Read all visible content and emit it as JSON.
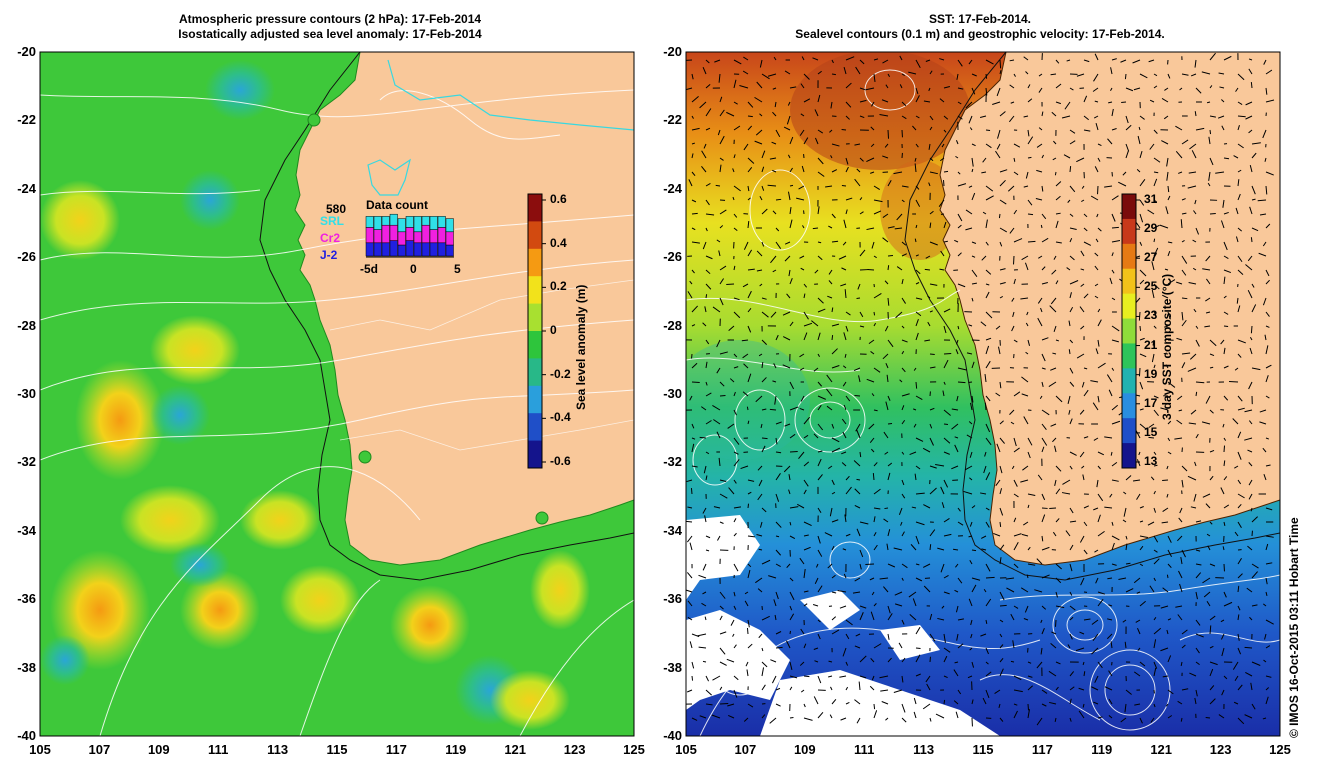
{
  "left_panel": {
    "title_line1": "Atmospheric pressure contours (2 hPa): 17-Feb-2014",
    "title_line2": "Isostatically adjusted sea level anomaly: 17-Feb-2014",
    "colorbar": {
      "label": "Sea level anomaly (m)",
      "ticks": [
        "0.6",
        "0.4",
        "0.2",
        "0",
        "-0.2",
        "-0.4",
        "-0.6"
      ],
      "colors": [
        "#8b0d0d",
        "#d24a10",
        "#f59a12",
        "#f2e21b",
        "#a8e030",
        "#2ec53c",
        "#28b888",
        "#2a9fdc",
        "#1f4fc8",
        "#14148c"
      ]
    },
    "inset": {
      "title": "Data count",
      "count": "580",
      "sat1": "SRL",
      "sat2": "Cr2",
      "sat3": "J-2",
      "x_ticks": [
        "-5d",
        "0",
        "5"
      ],
      "sat_colors": [
        "#30e0e8",
        "#f020e0",
        "#2020e0"
      ],
      "bars": [
        {
          "srl": 0.25,
          "cr2": 0.35,
          "j2": 0.3
        },
        {
          "srl": 0.3,
          "cr2": 0.3,
          "j2": 0.3
        },
        {
          "srl": 0.2,
          "cr2": 0.4,
          "j2": 0.3
        },
        {
          "srl": 0.25,
          "cr2": 0.35,
          "j2": 0.35
        },
        {
          "srl": 0.3,
          "cr2": 0.3,
          "j2": 0.25
        },
        {
          "srl": 0.25,
          "cr2": 0.3,
          "j2": 0.35
        },
        {
          "srl": 0.35,
          "cr2": 0.25,
          "j2": 0.3
        },
        {
          "srl": 0.2,
          "cr2": 0.4,
          "j2": 0.3
        },
        {
          "srl": 0.3,
          "cr2": 0.3,
          "j2": 0.3
        },
        {
          "srl": 0.25,
          "cr2": 0.35,
          "j2": 0.3
        },
        {
          "srl": 0.3,
          "cr2": 0.3,
          "j2": 0.25
        }
      ]
    }
  },
  "right_panel": {
    "title_line1": "SST: 17-Feb-2014.",
    "title_line2": "Sealevel contours (0.1 m) and geostrophic velocity: 17-Feb-2014.",
    "colorbar": {
      "label": "3-day SST composite (°C)",
      "ticks": [
        "31",
        "29",
        "27",
        "25",
        "23",
        "21",
        "19",
        "17",
        "15",
        "13"
      ],
      "colors": [
        "#7a0b0b",
        "#c8391a",
        "#e67a14",
        "#f2c21a",
        "#e8ee20",
        "#8fdc3a",
        "#2ec45a",
        "#22b2b0",
        "#2a8ee0",
        "#1f4fc8",
        "#14148c"
      ]
    }
  },
  "axes": {
    "lat_ticks": [
      "-20",
      "-22",
      "-24",
      "-26",
      "-28",
      "-30",
      "-32",
      "-34",
      "-36",
      "-38",
      "-40"
    ],
    "lon_ticks": [
      "105",
      "107",
      "109",
      "111",
      "113",
      "115",
      "117",
      "119",
      "121",
      "123",
      "125"
    ]
  },
  "credit": "© IMOS 16-Oct-2015 03:11 Hobart Time",
  "colors": {
    "land": "#f9c89a",
    "ocean_base_left": "#3ec83a",
    "coastline": "#000000",
    "contour": "#ffffff",
    "river": "#38d8e0"
  }
}
